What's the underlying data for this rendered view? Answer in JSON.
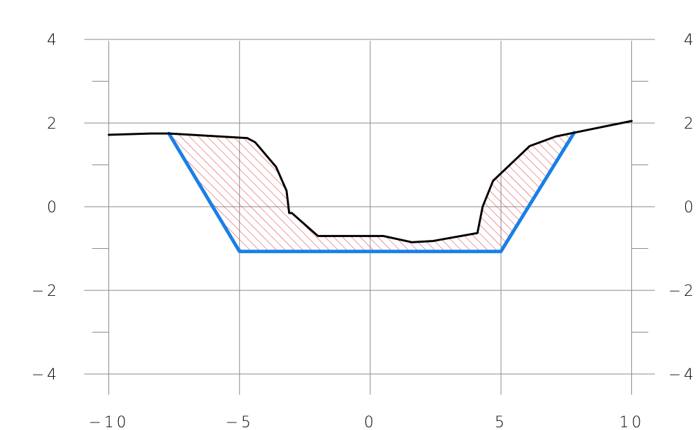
{
  "chart_data": {
    "type": "area",
    "title": "",
    "xlabel": "",
    "ylabel": "",
    "xlim": [
      -11,
      11
    ],
    "ylim": [
      -4.5,
      4.1
    ],
    "grid": true,
    "x_ticks": [
      -10,
      -5,
      0,
      5,
      10
    ],
    "x_tick_labels": [
      "−10",
      "−5",
      "0",
      "5",
      "10"
    ],
    "y_ticks": [
      4,
      2,
      0,
      -2,
      -4
    ],
    "y_tick_labels": [
      "4",
      "2",
      "0",
      "−2",
      "−4"
    ],
    "y_minor_ticks": [
      3,
      1,
      -1,
      -3
    ],
    "series": [
      {
        "role": "ground-profile",
        "color": "#000000",
        "x": [
          -10,
          -8.4,
          -7.7,
          -4.7,
          -4.4,
          -3.6,
          -3.2,
          -3.1,
          -3.0,
          -2.0,
          0.5,
          1.6,
          2.4,
          4.1,
          4.3,
          4.7,
          6.1,
          7.1,
          7.8,
          10
        ],
        "y": [
          1.72,
          1.75,
          1.75,
          1.64,
          1.54,
          0.95,
          0.38,
          -0.15,
          -0.15,
          -0.7,
          -0.7,
          -0.85,
          -0.82,
          -0.63,
          0.0,
          0.62,
          1.45,
          1.68,
          1.77,
          2.05
        ]
      },
      {
        "role": "design-section",
        "color": "#1a7fe8",
        "x": [
          -7.7,
          -5.0,
          5.0,
          7.8
        ],
        "y": [
          1.75,
          -1.07,
          -1.07,
          1.77
        ]
      }
    ],
    "fill": {
      "role": "cut-area",
      "color": "#e03030",
      "pattern": "diagonal-hatch"
    }
  }
}
